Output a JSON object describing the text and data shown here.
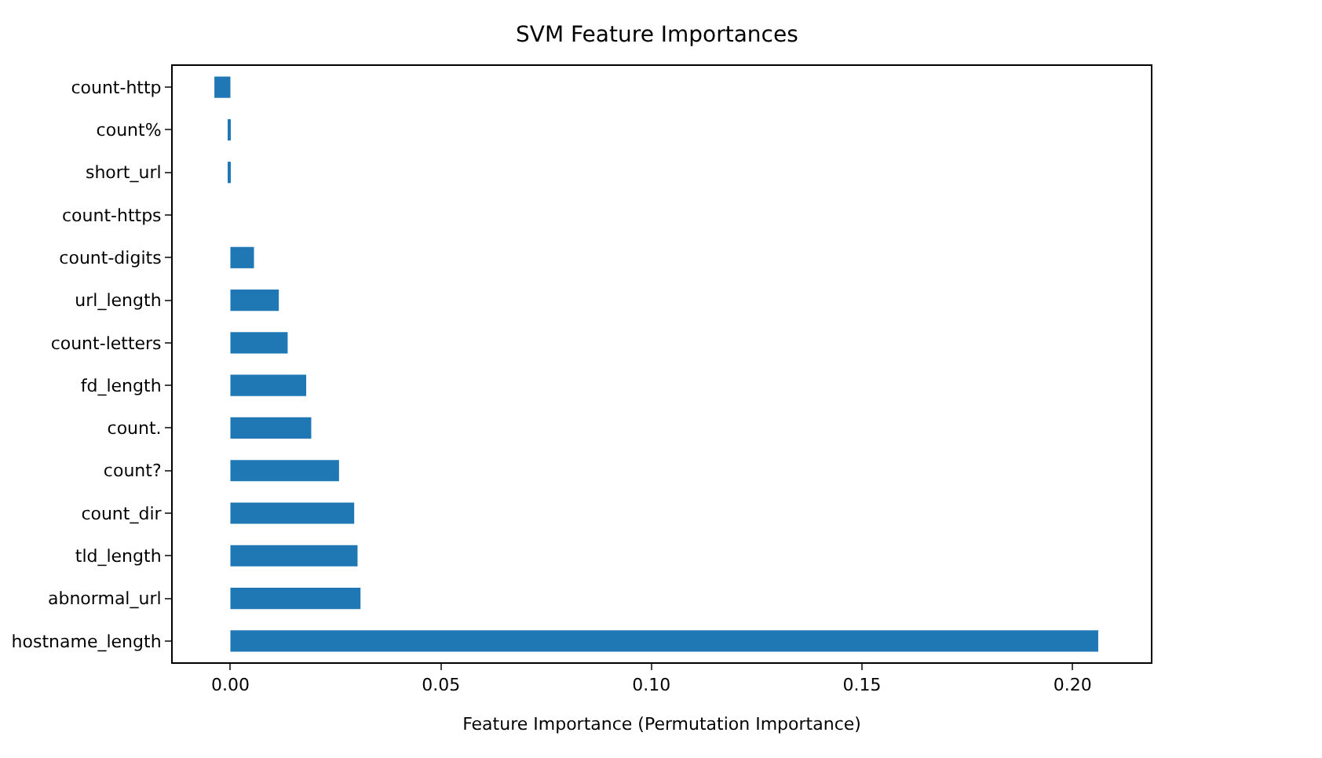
{
  "chart_data": {
    "type": "bar",
    "orientation": "horizontal",
    "title": "SVM Feature Importances",
    "xlabel": "Feature Importance (Permutation Importance)",
    "categories": [
      "count-http",
      "count%",
      "short_url",
      "count-https",
      "count-digits",
      "url_length",
      "count-letters",
      "fd_length",
      "count.",
      "count?",
      "count_dir",
      "tld_length",
      "abnormal_url",
      "hostname_length"
    ],
    "values": [
      -0.0038,
      -0.0006,
      -0.0006,
      0,
      0.0056,
      0.0115,
      0.0136,
      0.018,
      0.0192,
      0.0258,
      0.0294,
      0.0302,
      0.0309,
      0.2061
    ],
    "color": "#1f77b4",
    "xlim": [
      -0.0137,
      0.2186
    ],
    "xticks": [
      {
        "value": 0,
        "label": "0.00"
      },
      0.05,
      {
        "value": 0.1,
        "label": "0.10"
      },
      0.15,
      {
        "value": 0.2,
        "label": "0.20"
      }
    ],
    "grid": false
  }
}
